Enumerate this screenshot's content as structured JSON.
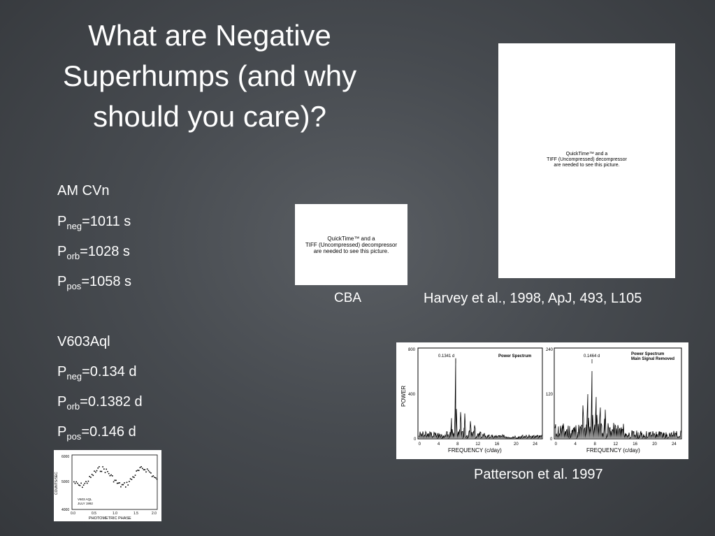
{
  "slide": {
    "title_lines": [
      "What are Negative",
      "Superhumps (and why",
      "should you care)?"
    ]
  },
  "am_cvn": {
    "name": "AM CVn",
    "rows": [
      {
        "base": "P",
        "sub": "neg",
        "value": "=1011 s"
      },
      {
        "base": "P",
        "sub": "orb",
        "value": "=1028 s"
      },
      {
        "base": "P",
        "sub": "pos",
        "value": "=1058 s"
      }
    ]
  },
  "v603aql": {
    "name": "V603Aql",
    "rows": [
      {
        "base": "P",
        "sub": "neg",
        "value": "=0.134 d"
      },
      {
        "base": "P",
        "sub": "orb",
        "value": "=0.1382 d"
      },
      {
        "base": "P",
        "sub": "pos",
        "value": "=0.146 d"
      }
    ]
  },
  "quicktime_placeholder": {
    "lines": [
      "QuickTime™ and a",
      "TIFF (Uncompressed) decompressor",
      "are needed to see this picture."
    ]
  },
  "captions": {
    "cba": "CBA",
    "harvey": "Harvey et al., 1998, ApJ, 493, L105",
    "patterson": "Patterson et al. 1997"
  },
  "light_curve": {
    "ylabel": "COUNTS/SEC",
    "xlabel": "PHOTOMETRIC PHASE",
    "legend_lines": [
      "V603 AQL",
      "JULY 1992"
    ],
    "y_ticks": [
      "6000",
      "5000",
      "4000"
    ],
    "x_ticks": [
      "0.0",
      "0.5",
      "1.0",
      "1.5",
      "2.0"
    ]
  },
  "power_spectra": {
    "ylabel": "POWER",
    "xlabel": "FREQUENCY  (c/day)",
    "x_ticks": [
      "0",
      "4",
      "8",
      "12",
      "16",
      "20",
      "24"
    ],
    "left": {
      "y_ticks": [
        "800",
        "400",
        "0"
      ],
      "peak_label": "0.1341  d",
      "title_lines": [
        "Power Spectrum"
      ]
    },
    "right": {
      "y_ticks": [
        "240",
        "120",
        "0"
      ],
      "peak_label": "0.1464  d",
      "title_lines": [
        "Power Spectrum",
        "Main Signal Removed"
      ]
    }
  }
}
